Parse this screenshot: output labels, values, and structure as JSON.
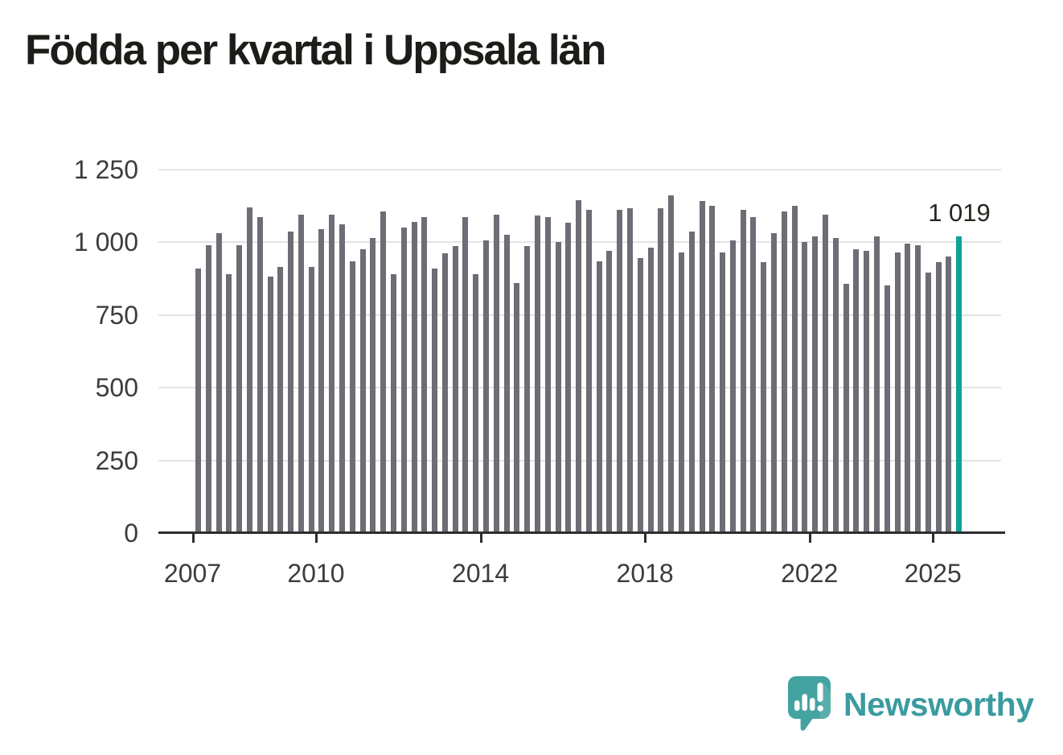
{
  "title": "Födda per kvartal i Uppsala län",
  "branding": {
    "name": "Newsworthy",
    "logo_icon": "speech-bubble-bar-chart-icon"
  },
  "colors": {
    "bar": "#6e6c74",
    "highlight": "#10a195",
    "grid": "#e4e4e4",
    "axis": "#2d2d2d",
    "axis_text": "#3c3c3c",
    "title_text": "#1c1c19",
    "brand": "#3a9ba0",
    "background": "#ffffff"
  },
  "chart_data": {
    "type": "bar",
    "title": "Födda per kvartal i Uppsala län",
    "xlabel": "",
    "ylabel": "",
    "ylim": [
      0,
      1250
    ],
    "grid": "horizontal",
    "legend": "none",
    "y_ticks": [
      {
        "label": "0",
        "value": 0
      },
      {
        "label": "250",
        "value": 250
      },
      {
        "label": "500",
        "value": 500
      },
      {
        "label": "750",
        "value": 750
      },
      {
        "label": "1 000",
        "value": 1000
      },
      {
        "label": "1 250",
        "value": 1250
      }
    ],
    "x_ticks": [
      {
        "label": "2007",
        "slot": 0
      },
      {
        "label": "2010",
        "slot": 12
      },
      {
        "label": "2014",
        "slot": 28
      },
      {
        "label": "2018",
        "slot": 44
      },
      {
        "label": "2022",
        "slot": 60
      },
      {
        "label": "2025",
        "slot": 72
      }
    ],
    "categories": [
      "2007 kv1",
      "2007 kv2",
      "2007 kv3",
      "2007 kv4",
      "2008 kv1",
      "2008 kv2",
      "2008 kv3",
      "2008 kv4",
      "2009 kv1",
      "2009 kv2",
      "2009 kv3",
      "2009 kv4",
      "2010 kv1",
      "2010 kv2",
      "2010 kv3",
      "2010 kv4",
      "2011 kv1",
      "2011 kv2",
      "2011 kv3",
      "2011 kv4",
      "2012 kv1",
      "2012 kv2",
      "2012 kv3",
      "2012 kv4",
      "2013 kv1",
      "2013 kv2",
      "2013 kv3",
      "2013 kv4",
      "2014 kv1",
      "2014 kv2",
      "2014 kv3",
      "2014 kv4",
      "2015 kv1",
      "2015 kv2",
      "2015 kv3",
      "2015 kv4",
      "2016 kv1",
      "2016 kv2",
      "2016 kv3",
      "2016 kv4",
      "2017 kv1",
      "2017 kv2",
      "2017 kv3",
      "2017 kv4",
      "2018 kv1",
      "2018 kv2",
      "2018 kv3",
      "2018 kv4",
      "2019 kv1",
      "2019 kv2",
      "2019 kv3",
      "2019 kv4",
      "2020 kv1",
      "2020 kv2",
      "2020 kv3",
      "2020 kv4",
      "2021 kv1",
      "2021 kv2",
      "2021 kv3",
      "2021 kv4",
      "2022 kv1",
      "2022 kv2",
      "2022 kv3",
      "2022 kv4",
      "2023 kv1",
      "2023 kv2",
      "2023 kv3",
      "2023 kv4",
      "2024 kv1",
      "2024 kv2",
      "2024 kv3",
      "2024 kv4",
      "2025 kv1",
      "2025 kv2",
      "2025 kv3"
    ],
    "values": [
      910,
      990,
      1030,
      890,
      990,
      1120,
      1085,
      880,
      915,
      1035,
      1095,
      915,
      1045,
      1095,
      1060,
      935,
      975,
      1015,
      1105,
      890,
      1050,
      1070,
      1085,
      910,
      960,
      985,
      1085,
      890,
      1005,
      1095,
      1025,
      860,
      985,
      1090,
      1085,
      1000,
      1065,
      1145,
      1110,
      935,
      970,
      1110,
      1115,
      945,
      980,
      1115,
      1160,
      965,
      1035,
      1140,
      1125,
      965,
      1005,
      1110,
      1085,
      930,
      1030,
      1105,
      1125,
      1000,
      1020,
      1095,
      1015,
      855,
      975,
      970,
      1020,
      850,
      965,
      995,
      990,
      895,
      930,
      950,
      1019
    ],
    "highlight": {
      "category": "2025 kv3",
      "value": 1019,
      "label": "1 019",
      "index": 74
    }
  }
}
